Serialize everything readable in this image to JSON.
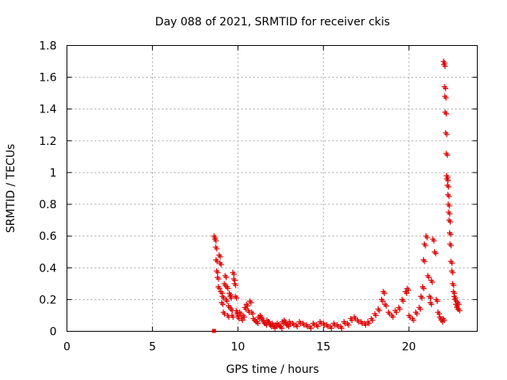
{
  "chart_data": {
    "type": "scatter",
    "title": "Day 088 of 2021, SRMTID for receiver ckis",
    "xlabel": "GPS time / hours",
    "ylabel": "SRMTID / TECUs",
    "xlim": [
      0,
      24
    ],
    "ylim": [
      0,
      1.8
    ],
    "x_ticks": [
      0,
      5,
      10,
      15,
      20
    ],
    "y_ticks": [
      0,
      0.2,
      0.4,
      0.6,
      0.8,
      1,
      1.2,
      1.4,
      1.6,
      1.8
    ],
    "x_tick_labels": [
      "0",
      "5",
      "10",
      "15",
      "20"
    ],
    "y_tick_labels": [
      "0",
      "0.2",
      "0.4",
      "0.6",
      "0.8",
      "1",
      "1.2",
      "1.4",
      "1.6",
      "1.8"
    ],
    "grid": true,
    "marker": "plus",
    "marker_color": "#e00000",
    "square_marker": {
      "x": 8.6,
      "y": 0
    },
    "series": [
      {
        "name": "SRMTID",
        "x": [
          8.6,
          8.65,
          8.7,
          8.72,
          8.75,
          8.8,
          8.85,
          8.9,
          8.95,
          9.0,
          9.05,
          9.1,
          9.15,
          9.2,
          9.25,
          9.3,
          9.35,
          9.4,
          9.45,
          9.5,
          9.55,
          9.6,
          9.65,
          9.7,
          9.75,
          9.8,
          9.85,
          9.9,
          9.95,
          10.0,
          10.1,
          10.2,
          10.3,
          10.4,
          10.5,
          10.6,
          10.7,
          10.8,
          10.9,
          11.0,
          11.1,
          11.2,
          11.3,
          11.4,
          11.5,
          11.6,
          11.7,
          11.8,
          11.9,
          12.0,
          12.1,
          12.2,
          12.3,
          12.4,
          12.5,
          12.6,
          12.7,
          12.8,
          12.9,
          13.0,
          13.2,
          13.4,
          13.6,
          13.8,
          14.0,
          14.2,
          14.4,
          14.6,
          14.8,
          15.0,
          15.2,
          15.4,
          15.6,
          15.8,
          16.0,
          16.2,
          16.4,
          16.6,
          16.8,
          17.0,
          17.2,
          17.4,
          17.6,
          17.8,
          18.0,
          18.2,
          18.4,
          18.5,
          18.6,
          18.8,
          19.0,
          19.2,
          19.4,
          19.6,
          19.8,
          19.9,
          20.0,
          20.2,
          20.4,
          20.6,
          20.7,
          20.8,
          20.85,
          20.9,
          21.0,
          21.1,
          21.2,
          21.25,
          21.3,
          21.4,
          21.5,
          21.6,
          21.7,
          21.8,
          21.9,
          22.0,
          22.02,
          22.05,
          22.08,
          22.1,
          22.12,
          22.15,
          22.18,
          22.2,
          22.22,
          22.25,
          22.28,
          22.3,
          22.32,
          22.35,
          22.38,
          22.4,
          22.45,
          22.5,
          22.55,
          22.6,
          22.65,
          22.7,
          22.75,
          22.8,
          22.85,
          22.9
        ],
        "y": [
          0.6,
          0.58,
          0.53,
          0.45,
          0.38,
          0.34,
          0.28,
          0.48,
          0.43,
          0.25,
          0.18,
          0.22,
          0.12,
          0.3,
          0.35,
          0.2,
          0.28,
          0.1,
          0.16,
          0.24,
          0.22,
          0.14,
          0.1,
          0.37,
          0.33,
          0.3,
          0.22,
          0.13,
          0.11,
          0.09,
          0.12,
          0.08,
          0.1,
          0.15,
          0.17,
          0.13,
          0.19,
          0.12,
          0.08,
          0.07,
          0.06,
          0.09,
          0.1,
          0.08,
          0.06,
          0.05,
          0.07,
          0.06,
          0.04,
          0.05,
          0.03,
          0.04,
          0.05,
          0.04,
          0.03,
          0.06,
          0.07,
          0.05,
          0.04,
          0.06,
          0.05,
          0.04,
          0.06,
          0.05,
          0.04,
          0.03,
          0.05,
          0.04,
          0.06,
          0.05,
          0.04,
          0.03,
          0.05,
          0.04,
          0.03,
          0.06,
          0.05,
          0.08,
          0.09,
          0.07,
          0.06,
          0.05,
          0.06,
          0.08,
          0.11,
          0.14,
          0.2,
          0.25,
          0.17,
          0.12,
          0.1,
          0.13,
          0.15,
          0.2,
          0.25,
          0.27,
          0.1,
          0.08,
          0.12,
          0.15,
          0.22,
          0.28,
          0.45,
          0.55,
          0.6,
          0.35,
          0.22,
          0.18,
          0.32,
          0.58,
          0.5,
          0.2,
          0.12,
          0.09,
          0.07,
          0.08,
          1.7,
          1.68,
          1.54,
          1.48,
          1.38,
          1.25,
          1.12,
          0.98,
          0.96,
          0.92,
          0.86,
          0.8,
          0.75,
          0.7,
          0.62,
          0.55,
          0.44,
          0.38,
          0.3,
          0.25,
          0.22,
          0.2,
          0.17,
          0.15,
          0.18,
          0.14
        ]
      }
    ]
  }
}
